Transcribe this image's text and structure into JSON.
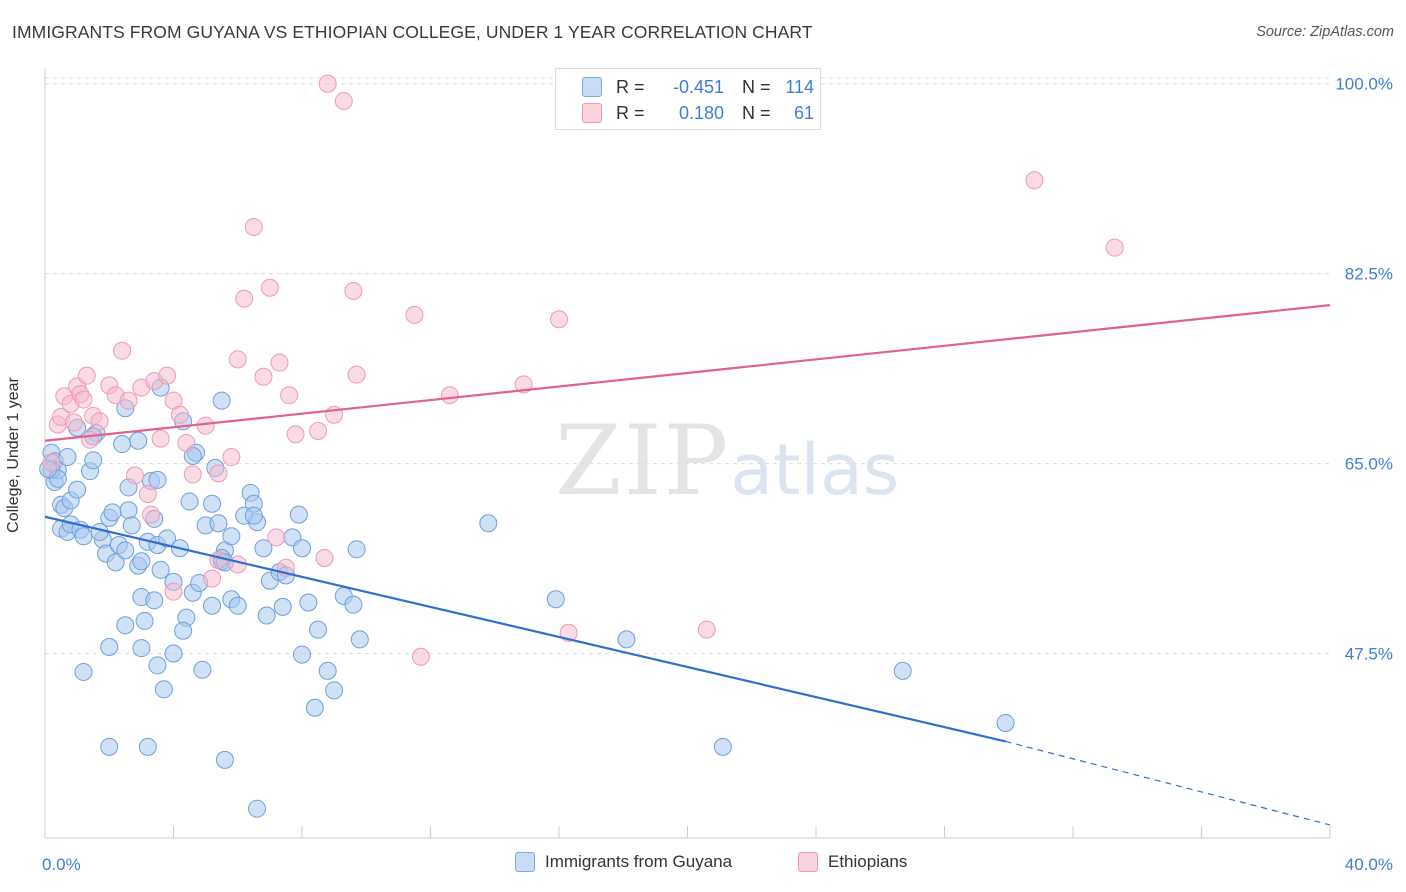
{
  "title": "IMMIGRANTS FROM GUYANA VS ETHIOPIAN COLLEGE, UNDER 1 YEAR CORRELATION CHART",
  "source": "Source: ZipAtlas.com",
  "watermark": {
    "zip": "ZIP",
    "atlas": "atlas"
  },
  "correlation_box": {
    "rows": [
      {
        "r_label": "R =",
        "r_value": "-0.451",
        "n_label": "N =",
        "n_value": "114",
        "color": "#a9c8ef"
      },
      {
        "r_label": "R =",
        "r_value": "0.180",
        "n_label": "N =",
        "n_value": "61",
        "color": "#f5b8cb"
      }
    ]
  },
  "legend": [
    {
      "label": "Immigrants from Guyana",
      "color": "#a9c8ef"
    },
    {
      "label": "Ethiopians",
      "color": "#f5b8cb"
    }
  ],
  "chart_data": {
    "type": "scatter",
    "title": "IMMIGRANTS FROM GUYANA VS ETHIOPIAN COLLEGE, UNDER 1 YEAR CORRELATION CHART",
    "xlabel": "",
    "ylabel": "College, Under 1 year",
    "xlim": [
      0,
      40
    ],
    "ylim": [
      30.5,
      102
    ],
    "x_tick_labels": [
      "0.0%",
      "40.0%"
    ],
    "y_ticks": [
      47.5,
      65.0,
      82.5,
      100.0
    ],
    "y_tick_labels": [
      "47.5%",
      "65.0%",
      "82.5%",
      "100.0%"
    ],
    "grid": true,
    "legend_position": "bottom-center",
    "colors": {
      "guyana_fill": "#a9c8ef",
      "guyana_line": "#2f6fcf",
      "ethiopian_fill": "#f5b8cb",
      "ethiopian_line": "#e0628f",
      "tick_label": "#3d7fd6"
    },
    "series": [
      {
        "name": "Immigrants from Guyana",
        "r": -0.451,
        "n": 114,
        "trend": {
          "x0": 0,
          "y0": 60.1,
          "x1": 29.9,
          "y1": 39.4,
          "x_end": 40,
          "y_end": 31.7
        },
        "points": [
          [
            0.2,
            66.0
          ],
          [
            0.3,
            65.2
          ],
          [
            0.3,
            63.3
          ],
          [
            0.4,
            64.4
          ],
          [
            0.5,
            61.2
          ],
          [
            0.5,
            59.0
          ],
          [
            0.6,
            60.9
          ],
          [
            0.7,
            58.7
          ],
          [
            0.8,
            59.4
          ],
          [
            0.8,
            61.6
          ],
          [
            1.0,
            62.6
          ],
          [
            1.1,
            58.9
          ],
          [
            1.2,
            58.3
          ],
          [
            1.4,
            64.3
          ],
          [
            1.5,
            65.3
          ],
          [
            1.6,
            67.8
          ],
          [
            1.8,
            58.0
          ],
          [
            1.9,
            56.7
          ],
          [
            2.0,
            60.0
          ],
          [
            2.2,
            55.9
          ],
          [
            2.3,
            57.5
          ],
          [
            2.5,
            57.0
          ],
          [
            2.6,
            62.8
          ],
          [
            2.6,
            60.7
          ],
          [
            2.7,
            59.3
          ],
          [
            2.9,
            55.6
          ],
          [
            3.0,
            52.7
          ],
          [
            3.0,
            56.0
          ],
          [
            3.1,
            50.5
          ],
          [
            3.2,
            57.8
          ],
          [
            3.3,
            63.4
          ],
          [
            3.4,
            59.9
          ],
          [
            3.5,
            57.5
          ],
          [
            3.6,
            55.2
          ],
          [
            3.8,
            58.1
          ],
          [
            4.0,
            54.1
          ],
          [
            4.2,
            57.2
          ],
          [
            4.4,
            50.8
          ],
          [
            4.5,
            61.5
          ],
          [
            4.6,
            53.1
          ],
          [
            4.7,
            66.0
          ],
          [
            4.8,
            54.0
          ],
          [
            5.0,
            59.3
          ],
          [
            5.2,
            61.3
          ],
          [
            5.4,
            59.5
          ],
          [
            5.5,
            56.0
          ],
          [
            5.6,
            57.0
          ],
          [
            5.8,
            52.5
          ],
          [
            6.0,
            51.9
          ],
          [
            6.2,
            60.2
          ],
          [
            6.4,
            62.3
          ],
          [
            6.5,
            61.3
          ],
          [
            6.6,
            59.6
          ],
          [
            6.8,
            57.2
          ],
          [
            7.0,
            54.2
          ],
          [
            7.3,
            55.0
          ],
          [
            7.5,
            54.7
          ],
          [
            7.7,
            58.2
          ],
          [
            7.9,
            60.3
          ],
          [
            8.0,
            57.2
          ],
          [
            1.2,
            45.8
          ],
          [
            2.0,
            48.1
          ],
          [
            2.5,
            50.1
          ],
          [
            3.0,
            48.0
          ],
          [
            3.5,
            46.4
          ],
          [
            3.7,
            44.2
          ],
          [
            4.0,
            47.5
          ],
          [
            4.3,
            49.6
          ],
          [
            4.9,
            46.0
          ],
          [
            5.2,
            51.9
          ],
          [
            5.5,
            56.3
          ],
          [
            5.6,
            55.9
          ],
          [
            5.3,
            64.6
          ],
          [
            5.8,
            58.3
          ],
          [
            6.5,
            60.2
          ],
          [
            6.9,
            51.0
          ],
          [
            7.4,
            51.8
          ],
          [
            8.2,
            52.2
          ],
          [
            8.0,
            47.4
          ],
          [
            8.5,
            49.7
          ],
          [
            8.8,
            45.9
          ],
          [
            9.0,
            44.1
          ],
          [
            9.3,
            52.8
          ],
          [
            9.6,
            52.0
          ],
          [
            9.7,
            57.1
          ],
          [
            2.5,
            70.1
          ],
          [
            2.9,
            67.1
          ],
          [
            3.5,
            63.5
          ],
          [
            4.3,
            68.9
          ],
          [
            5.5,
            70.8
          ],
          [
            4.6,
            65.7
          ],
          [
            3.6,
            72.0
          ],
          [
            2.4,
            66.8
          ],
          [
            0.7,
            65.6
          ],
          [
            1.7,
            58.7
          ],
          [
            2.0,
            38.9
          ],
          [
            3.2,
            38.9
          ],
          [
            5.6,
            37.7
          ],
          [
            6.6,
            33.2
          ],
          [
            8.4,
            42.5
          ],
          [
            9.8,
            48.8
          ],
          [
            13.8,
            59.5
          ],
          [
            15.9,
            52.5
          ],
          [
            18.1,
            48.8
          ],
          [
            21.1,
            38.9
          ],
          [
            26.7,
            45.9
          ],
          [
            29.9,
            41.1
          ],
          [
            0.2,
            64.4
          ],
          [
            0.4,
            63.6
          ],
          [
            0.1,
            64.5
          ],
          [
            1.0,
            68.3
          ],
          [
            1.5,
            67.5
          ],
          [
            2.1,
            60.5
          ],
          [
            3.4,
            52.4
          ]
        ]
      },
      {
        "name": "Ethiopians",
        "r": 0.18,
        "n": 61,
        "trend": {
          "x0": 0,
          "y0": 67.1,
          "x1": 40,
          "y1": 79.6
        },
        "points": [
          [
            0.2,
            65.1
          ],
          [
            0.4,
            68.6
          ],
          [
            0.5,
            69.3
          ],
          [
            0.6,
            71.2
          ],
          [
            0.8,
            70.5
          ],
          [
            0.9,
            68.8
          ],
          [
            1.0,
            72.1
          ],
          [
            1.1,
            71.4
          ],
          [
            1.2,
            70.9
          ],
          [
            1.3,
            73.1
          ],
          [
            1.5,
            69.4
          ],
          [
            1.7,
            68.9
          ],
          [
            2.0,
            72.2
          ],
          [
            2.2,
            71.3
          ],
          [
            2.4,
            75.4
          ],
          [
            2.6,
            70.8
          ],
          [
            2.8,
            63.9
          ],
          [
            3.0,
            72.0
          ],
          [
            3.2,
            62.2
          ],
          [
            3.4,
            72.6
          ],
          [
            3.6,
            67.3
          ],
          [
            3.8,
            73.1
          ],
          [
            4.0,
            70.8
          ],
          [
            4.2,
            69.5
          ],
          [
            4.4,
            66.9
          ],
          [
            4.6,
            64.0
          ],
          [
            5.0,
            68.5
          ],
          [
            5.4,
            64.1
          ],
          [
            5.8,
            65.6
          ],
          [
            6.0,
            74.6
          ],
          [
            6.2,
            80.2
          ],
          [
            6.5,
            86.8
          ],
          [
            6.8,
            73.0
          ],
          [
            7.0,
            81.2
          ],
          [
            7.3,
            74.3
          ],
          [
            7.6,
            71.3
          ],
          [
            7.8,
            67.7
          ],
          [
            8.5,
            68.0
          ],
          [
            9.0,
            69.5
          ],
          [
            9.6,
            80.9
          ],
          [
            9.7,
            73.2
          ],
          [
            11.5,
            78.7
          ],
          [
            12.6,
            71.3
          ],
          [
            14.9,
            72.3
          ],
          [
            16.0,
            78.3
          ],
          [
            8.8,
            100.0
          ],
          [
            9.3,
            98.4
          ],
          [
            30.8,
            91.1
          ],
          [
            33.3,
            84.9
          ],
          [
            5.4,
            56.1
          ],
          [
            6.0,
            55.7
          ],
          [
            7.2,
            58.2
          ],
          [
            5.2,
            54.4
          ],
          [
            4.0,
            53.2
          ],
          [
            3.3,
            60.3
          ],
          [
            8.7,
            56.3
          ],
          [
            7.5,
            55.4
          ],
          [
            11.7,
            47.2
          ],
          [
            16.3,
            49.4
          ],
          [
            20.6,
            49.7
          ],
          [
            1.4,
            67.2
          ]
        ]
      }
    ]
  }
}
